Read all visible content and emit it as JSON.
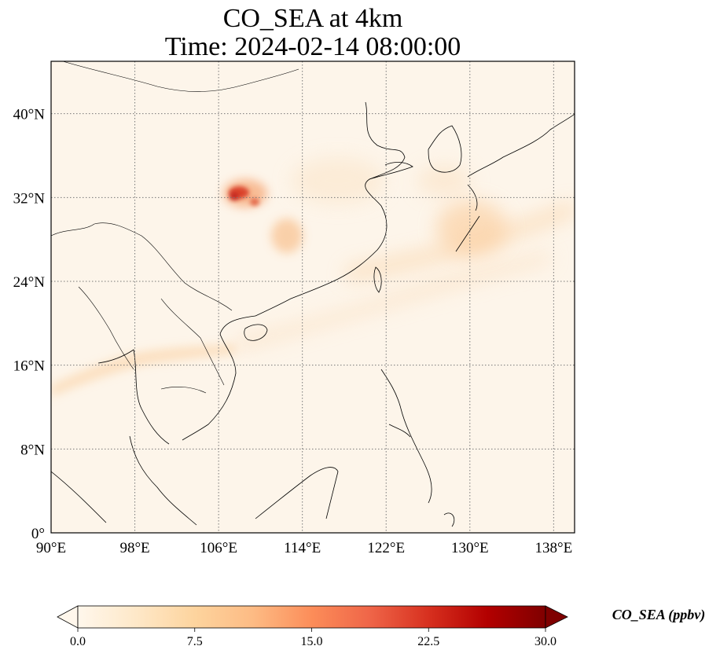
{
  "title": {
    "line1": "CO_SEA at 4km",
    "line2": "Time: 2024-02-14 08:00:00"
  },
  "map": {
    "lon_range": [
      90,
      140
    ],
    "lat_range": [
      0,
      45
    ],
    "x_ticks": [
      {
        "value": 90,
        "label": "90°E"
      },
      {
        "value": 98,
        "label": "98°E"
      },
      {
        "value": 106,
        "label": "106°E"
      },
      {
        "value": 114,
        "label": "114°E"
      },
      {
        "value": 122,
        "label": "122°E"
      },
      {
        "value": 130,
        "label": "130°E"
      },
      {
        "value": 138,
        "label": "138°E"
      }
    ],
    "y_ticks": [
      {
        "value": 0,
        "label": "0°"
      },
      {
        "value": 8,
        "label": "8°N"
      },
      {
        "value": 16,
        "label": "16°N"
      },
      {
        "value": 24,
        "label": "24°N"
      },
      {
        "value": 32,
        "label": "32°N"
      },
      {
        "value": 40,
        "label": "40°N"
      }
    ],
    "gridlines": "dotted",
    "field_color": "#fdf5ea",
    "plumes": [
      {
        "name": "sichuan-hotspot",
        "lon": 107.0,
        "lat": 32.3,
        "value": 22
      },
      {
        "name": "sichuan-hotspot-east",
        "lon": 109.3,
        "lat": 31.6,
        "value": 16
      },
      {
        "name": "central-china-plume",
        "lon": 111.5,
        "lat": 29.3,
        "value": 6
      },
      {
        "name": "east-china-sea-plume",
        "lon": 125.0,
        "lat": 27.0,
        "value": 4
      },
      {
        "name": "japan-plume",
        "lon": 132.0,
        "lat": 29.5,
        "value": 5
      },
      {
        "name": "indochina-band",
        "lon": 93.0,
        "lat": 15.5,
        "value": 6
      },
      {
        "name": "south-china-sea-band",
        "lon": 116.0,
        "lat": 20.0,
        "value": 3
      }
    ]
  },
  "colorbar": {
    "label": "CO_SEA (ppbv)",
    "colormap": "OrRd",
    "range": [
      0.0,
      30.0
    ],
    "extend": "both",
    "ticks": [
      "0.0",
      "7.5",
      "15.0",
      "22.5",
      "30.0"
    ],
    "colors": [
      "#fff7ec",
      "#fee8c8",
      "#fdd49e",
      "#fdbb84",
      "#fc8d59",
      "#ef6548",
      "#d7301f",
      "#b30000",
      "#7f0000"
    ]
  }
}
